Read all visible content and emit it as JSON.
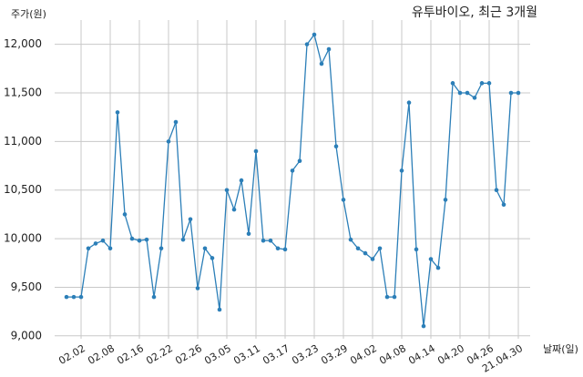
{
  "chart_data": {
    "type": "line",
    "title": "유투바이오, 최근 3개월",
    "y_label": "주가(원)",
    "x_label": "날짜(일)",
    "categories": [
      null,
      null,
      "02.02",
      null,
      null,
      null,
      "02.08",
      null,
      null,
      null,
      "02.16",
      null,
      null,
      null,
      "02.22",
      null,
      null,
      null,
      "02.26",
      null,
      null,
      null,
      "03.05",
      null,
      null,
      null,
      "03.11",
      null,
      null,
      null,
      "03.17",
      null,
      null,
      null,
      "03.23",
      null,
      null,
      null,
      "03.29",
      null,
      null,
      null,
      "04.02",
      null,
      null,
      null,
      "04.08",
      null,
      null,
      null,
      "04.14",
      null,
      null,
      null,
      "04.20",
      null,
      null,
      null,
      "04.26",
      null,
      null,
      null,
      "21.04.30"
    ],
    "series": [
      {
        "name": "주가",
        "color": "#2c7fb8",
        "values": [
          9400,
          9400,
          9400,
          9900,
          9950,
          9980,
          9900,
          11300,
          10250,
          10000,
          9980,
          9990,
          9400,
          9900,
          11000,
          11200,
          9990,
          10200,
          9490,
          9900,
          9800,
          9270,
          10500,
          10300,
          10600,
          10050,
          10900,
          9980,
          9980,
          9900,
          9890,
          10700,
          10800,
          12000,
          12100,
          11800,
          11950,
          10950,
          10400,
          9990,
          9900,
          9850,
          9790,
          9900,
          9400,
          9400,
          10700,
          11400,
          9890,
          9100,
          9790,
          9700,
          10400,
          11600,
          11500,
          11500,
          11450,
          11600,
          11600,
          10500,
          10350,
          11500,
          11500
        ]
      }
    ],
    "ylim": [
      8970,
      12250
    ],
    "yticks": [
      {
        "value": 9000,
        "label": "9,000"
      },
      {
        "value": 9500,
        "label": "9,500"
      },
      {
        "value": 10000,
        "label": "10,000"
      },
      {
        "value": 10500,
        "label": "10,500"
      },
      {
        "value": 11000,
        "label": "11,000"
      },
      {
        "value": 11500,
        "label": "11,500"
      },
      {
        "value": 12000,
        "label": "12,000"
      }
    ],
    "grid": true
  }
}
